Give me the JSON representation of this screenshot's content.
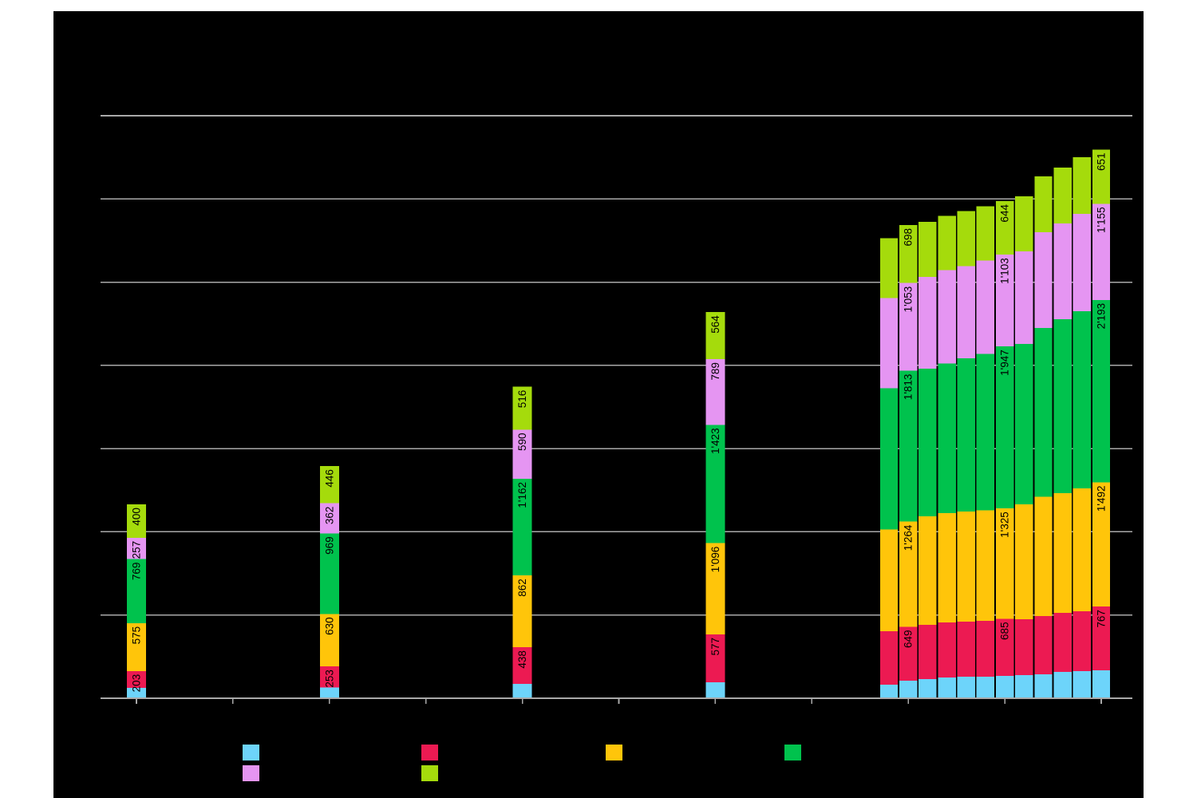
{
  "canvas": {
    "page_background": "#FFFFFF",
    "background": "#000000"
  },
  "chart_data": {
    "type": "bar",
    "stacked": true,
    "title": "",
    "xlabel": "",
    "ylabel": "",
    "ylim": [
      0,
      7000
    ],
    "gridline_step": 1000,
    "grid": true,
    "legend_position": "bottom",
    "number_format": "thousands-apostrophe",
    "label_color": "#000000",
    "colors": {
      "grid": "#A9A9A9",
      "axis": "#A9A9A9",
      "tick": "#A9A9A9"
    },
    "series": [
      {
        "name": "light-blue",
        "color": "#6DD4FA"
      },
      {
        "name": "red",
        "color": "#EC1A52"
      },
      {
        "name": "yellow",
        "color": "#FFC50A"
      },
      {
        "name": "green",
        "color": "#00C24D"
      },
      {
        "name": "violet",
        "color": "#E595F2"
      },
      {
        "name": "light-green",
        "color": "#A5DB0C"
      }
    ],
    "bars": [
      {
        "group": "single",
        "values": [
          125,
          203,
          575,
          769,
          257,
          400
        ],
        "show_labels": true
      },
      {
        "group": "single",
        "values": [
          130,
          253,
          630,
          969,
          362,
          446
        ],
        "show_labels": true
      },
      {
        "group": "single",
        "values": [
          175,
          438,
          862,
          1162,
          590,
          516
        ],
        "show_labels": true
      },
      {
        "group": "single",
        "values": [
          190,
          577,
          1096,
          1423,
          789,
          564
        ],
        "show_labels": true
      },
      {
        "group": "cluster",
        "values": [
          165,
          640,
          1225,
          1695,
          1085,
          720
        ],
        "show_labels": false
      },
      {
        "group": "cluster",
        "values": [
          210,
          649,
          1264,
          1813,
          1053,
          698
        ],
        "show_labels": true
      },
      {
        "group": "cluster",
        "values": [
          230,
          650,
          1305,
          1775,
          1105,
          660
        ],
        "show_labels": false
      },
      {
        "group": "cluster",
        "values": [
          250,
          660,
          1315,
          1800,
          1120,
          650
        ],
        "show_labels": false
      },
      {
        "group": "cluster",
        "values": [
          260,
          660,
          1325,
          1840,
          1110,
          660
        ],
        "show_labels": false
      },
      {
        "group": "cluster",
        "values": [
          260,
          670,
          1330,
          1880,
          1120,
          650
        ],
        "show_labels": false
      },
      {
        "group": "cluster",
        "values": [
          270,
          685,
          1325,
          1947,
          1103,
          644
        ],
        "show_labels": true
      },
      {
        "group": "cluster",
        "values": [
          280,
          670,
          1380,
          1930,
          1110,
          660
        ],
        "show_labels": false
      },
      {
        "group": "cluster",
        "values": [
          290,
          700,
          1430,
          2030,
          1150,
          670
        ],
        "show_labels": false
      },
      {
        "group": "cluster",
        "values": [
          315,
          710,
          1440,
          2090,
          1150,
          670
        ],
        "show_labels": false
      },
      {
        "group": "cluster",
        "values": [
          325,
          720,
          1475,
          2130,
          1170,
          680
        ],
        "show_labels": false
      },
      {
        "group": "cluster",
        "values": [
          335,
          767,
          1492,
          2193,
          1155,
          651
        ],
        "show_labels": true
      }
    ],
    "value_labels_shown_for_series": [
      "red",
      "yellow",
      "green",
      "violet",
      "light-green"
    ]
  },
  "legend": {
    "items": [
      {
        "series": "light-blue",
        "label": ""
      },
      {
        "series": "red",
        "label": ""
      },
      {
        "series": "yellow",
        "label": ""
      },
      {
        "series": "green",
        "label": ""
      },
      {
        "series": "violet",
        "label": ""
      },
      {
        "series": "light-green",
        "label": ""
      }
    ]
  }
}
